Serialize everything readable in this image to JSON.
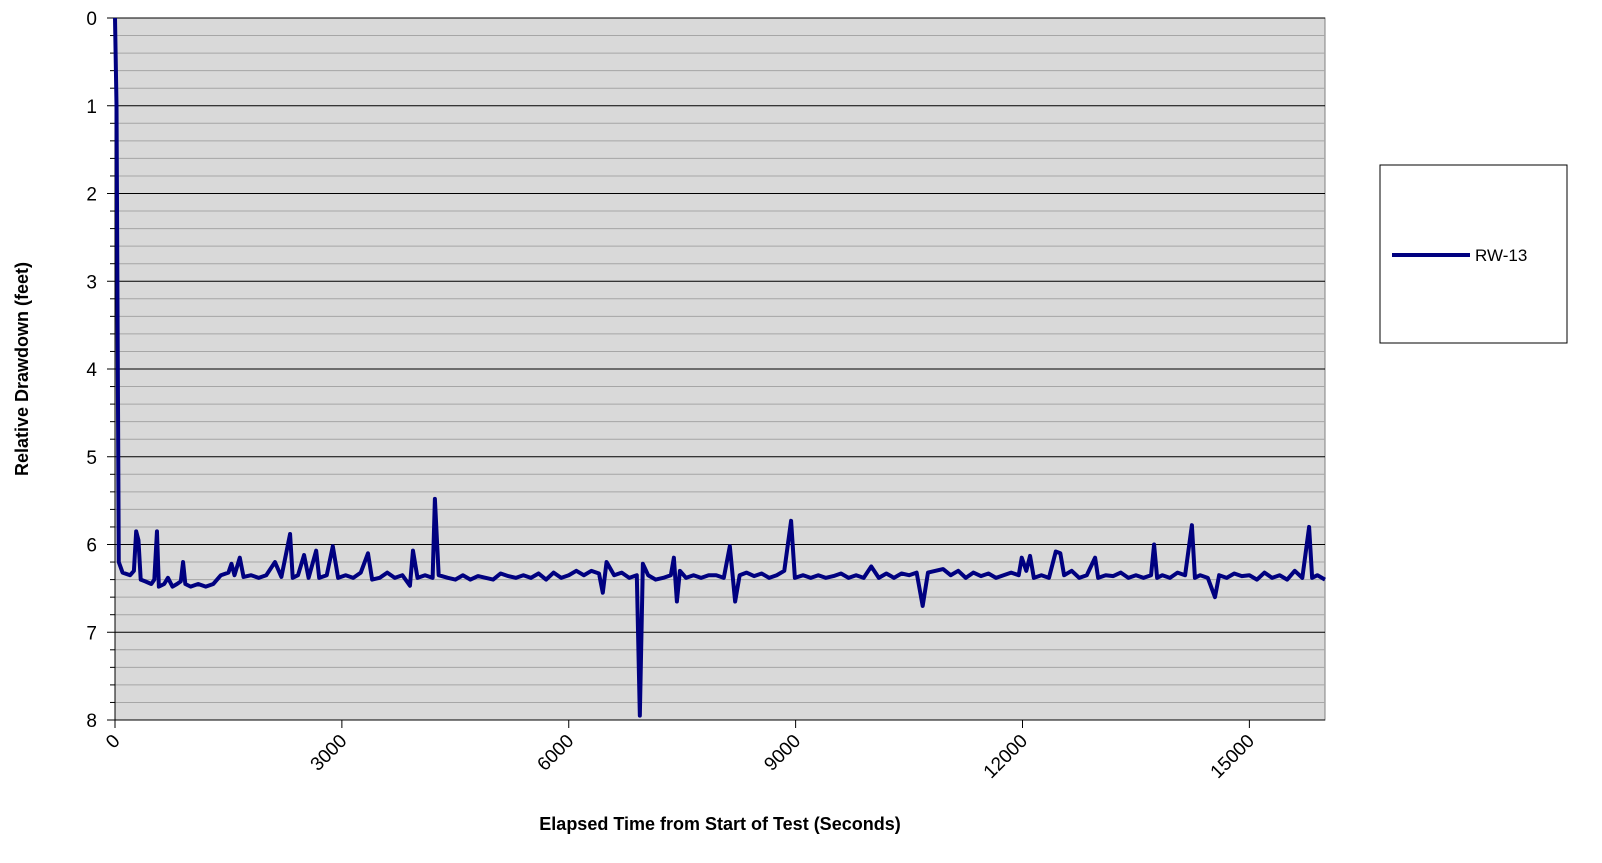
{
  "chart_data": {
    "type": "line",
    "xlabel": "Elapsed Time from Start of Test (Seconds)",
    "ylabel": "Relative Drawdown (feet)",
    "xlim": [
      0,
      16000
    ],
    "xticks": [
      0,
      3000,
      6000,
      9000,
      12000,
      15000
    ],
    "ylim": [
      8,
      0
    ],
    "yticks": [
      0,
      1,
      2,
      3,
      4,
      5,
      6,
      7,
      8
    ],
    "y_inverted": true,
    "grid": true,
    "minor_grid_divisions": 5,
    "background": "#d9d9d9",
    "legend": "right",
    "x": [
      0,
      20,
      50,
      100,
      200,
      250,
      280,
      310,
      340,
      400,
      480,
      520,
      555,
      580,
      650,
      700,
      760,
      820,
      870,
      900,
      930,
      1000,
      1100,
      1200,
      1300,
      1400,
      1500,
      1540,
      1580,
      1650,
      1700,
      1800,
      1900,
      2000,
      2115,
      2200,
      2315,
      2350,
      2420,
      2500,
      2560,
      2660,
      2700,
      2800,
      2880,
      2950,
      3050,
      3150,
      3250,
      3345,
      3400,
      3500,
      3600,
      3700,
      3800,
      3900,
      3940,
      4000,
      4100,
      4200,
      4230,
      4280,
      4400,
      4500,
      4600,
      4700,
      4800,
      4900,
      5000,
      5100,
      5200,
      5300,
      5400,
      5500,
      5600,
      5700,
      5800,
      5900,
      6000,
      6100,
      6200,
      6300,
      6400,
      6450,
      6500,
      6600,
      6700,
      6800,
      6900,
      6940,
      6980,
      7050,
      7150,
      7250,
      7350,
      7390,
      7430,
      7470,
      7550,
      7650,
      7750,
      7850,
      7950,
      8050,
      8130,
      8200,
      8260,
      8350,
      8450,
      8550,
      8650,
      8750,
      8850,
      8940,
      8990,
      9100,
      9200,
      9300,
      9400,
      9500,
      9600,
      9700,
      9800,
      9900,
      10000,
      10100,
      10200,
      10300,
      10400,
      10500,
      10600,
      10680,
      10750,
      10850,
      10950,
      11050,
      11150,
      11250,
      11350,
      11450,
      11550,
      11650,
      11750,
      11850,
      11950,
      11990,
      12050,
      12100,
      12150,
      12250,
      12350,
      12440,
      12500,
      12550,
      12650,
      12750,
      12850,
      12960,
      13000,
      13100,
      13200,
      13300,
      13400,
      13500,
      13600,
      13700,
      13740,
      13780,
      13850,
      13950,
      14050,
      14150,
      14240,
      14280,
      14350,
      14450,
      14545,
      14600,
      14700,
      14800,
      14900,
      15000,
      15100,
      15200,
      15300,
      15400,
      15500,
      15600,
      15700,
      15790,
      15830,
      15900,
      16000
    ],
    "series": [
      {
        "name": "RW-13",
        "color": "#000080",
        "values": [
          0,
          1,
          6.2,
          6.32,
          6.35,
          6.3,
          5.85,
          5.95,
          6.4,
          6.42,
          6.45,
          6.4,
          5.85,
          6.48,
          6.45,
          6.38,
          6.48,
          6.45,
          6.42,
          6.2,
          6.45,
          6.48,
          6.45,
          6.48,
          6.45,
          6.35,
          6.32,
          6.22,
          6.35,
          6.15,
          6.37,
          6.35,
          6.38,
          6.35,
          6.2,
          6.37,
          5.88,
          6.38,
          6.35,
          6.12,
          6.38,
          6.07,
          6.38,
          6.35,
          6.02,
          6.38,
          6.35,
          6.38,
          6.32,
          6.1,
          6.4,
          6.38,
          6.32,
          6.38,
          6.35,
          6.47,
          6.07,
          6.38,
          6.35,
          6.38,
          5.48,
          6.35,
          6.38,
          6.4,
          6.35,
          6.4,
          6.36,
          6.38,
          6.4,
          6.33,
          6.36,
          6.38,
          6.35,
          6.38,
          6.33,
          6.4,
          6.32,
          6.38,
          6.35,
          6.3,
          6.35,
          6.3,
          6.33,
          6.55,
          6.2,
          6.35,
          6.32,
          6.38,
          6.35,
          7.95,
          6.22,
          6.35,
          6.4,
          6.38,
          6.35,
          6.15,
          6.65,
          6.3,
          6.38,
          6.35,
          6.38,
          6.35,
          6.35,
          6.38,
          6.02,
          6.65,
          6.35,
          6.32,
          6.36,
          6.33,
          6.38,
          6.35,
          6.3,
          5.73,
          6.38,
          6.35,
          6.38,
          6.35,
          6.38,
          6.36,
          6.33,
          6.38,
          6.35,
          6.38,
          6.25,
          6.38,
          6.33,
          6.38,
          6.33,
          6.35,
          6.32,
          6.7,
          6.32,
          6.3,
          6.28,
          6.35,
          6.3,
          6.38,
          6.32,
          6.36,
          6.33,
          6.38,
          6.35,
          6.32,
          6.35,
          6.15,
          6.3,
          6.13,
          6.38,
          6.35,
          6.38,
          6.08,
          6.1,
          6.35,
          6.3,
          6.38,
          6.35,
          6.15,
          6.38,
          6.35,
          6.36,
          6.32,
          6.38,
          6.35,
          6.38,
          6.35,
          6.0,
          6.38,
          6.35,
          6.38,
          6.32,
          6.35,
          5.78,
          6.38,
          6.35,
          6.38,
          6.6,
          6.35,
          6.38,
          6.33,
          6.36,
          6.35,
          6.4,
          6.32,
          6.38,
          6.35,
          6.4,
          6.3,
          6.38,
          5.8,
          6.38,
          6.35,
          6.4
        ]
      }
    ]
  }
}
